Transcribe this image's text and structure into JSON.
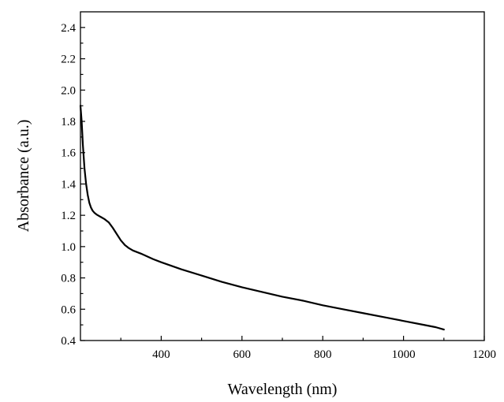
{
  "chart_data": {
    "type": "line",
    "title": "",
    "xlabel": "Wavelength (nm)",
    "ylabel": "Absorbance (a.u.)",
    "xlim": [
      200,
      1200
    ],
    "ylim": [
      0.4,
      2.5
    ],
    "x_ticks": [
      400,
      600,
      800,
      1000,
      1200
    ],
    "x_minor_ticks": [
      300,
      500,
      700,
      900,
      1100
    ],
    "y_ticks": [
      0.4,
      0.6,
      0.8,
      1.0,
      1.2,
      1.4,
      1.6,
      1.8,
      2.0,
      2.2,
      2.4
    ],
    "y_minor_ticks": [
      0.5,
      0.7,
      0.9,
      1.1,
      1.3,
      1.5,
      1.7,
      1.9,
      2.1,
      2.3
    ],
    "x_tick_labels": [
      "400",
      "600",
      "800",
      "1000",
      "1200"
    ],
    "y_tick_labels": [
      "0.4",
      "0.6",
      "0.8",
      "1.0",
      "1.2",
      "1.4",
      "1.6",
      "1.8",
      "2.0",
      "2.2",
      "2.4"
    ],
    "grid": false,
    "legend": "none",
    "series": [
      {
        "color": "#000000",
        "x": [
          200,
          203,
          206,
          210,
          214,
          218,
          222,
          226,
          230,
          235,
          240,
          250,
          260,
          270,
          280,
          290,
          300,
          310,
          320,
          330,
          350,
          380,
          400,
          450,
          500,
          550,
          600,
          650,
          700,
          750,
          800,
          850,
          900,
          950,
          1000,
          1050,
          1080,
          1100
        ],
        "y": [
          1.9,
          1.8,
          1.65,
          1.5,
          1.4,
          1.33,
          1.28,
          1.25,
          1.23,
          1.215,
          1.205,
          1.19,
          1.175,
          1.155,
          1.12,
          1.08,
          1.04,
          1.01,
          0.99,
          0.975,
          0.955,
          0.92,
          0.9,
          0.855,
          0.815,
          0.775,
          0.74,
          0.71,
          0.68,
          0.655,
          0.625,
          0.6,
          0.575,
          0.55,
          0.525,
          0.5,
          0.485,
          0.47
        ]
      }
    ]
  }
}
